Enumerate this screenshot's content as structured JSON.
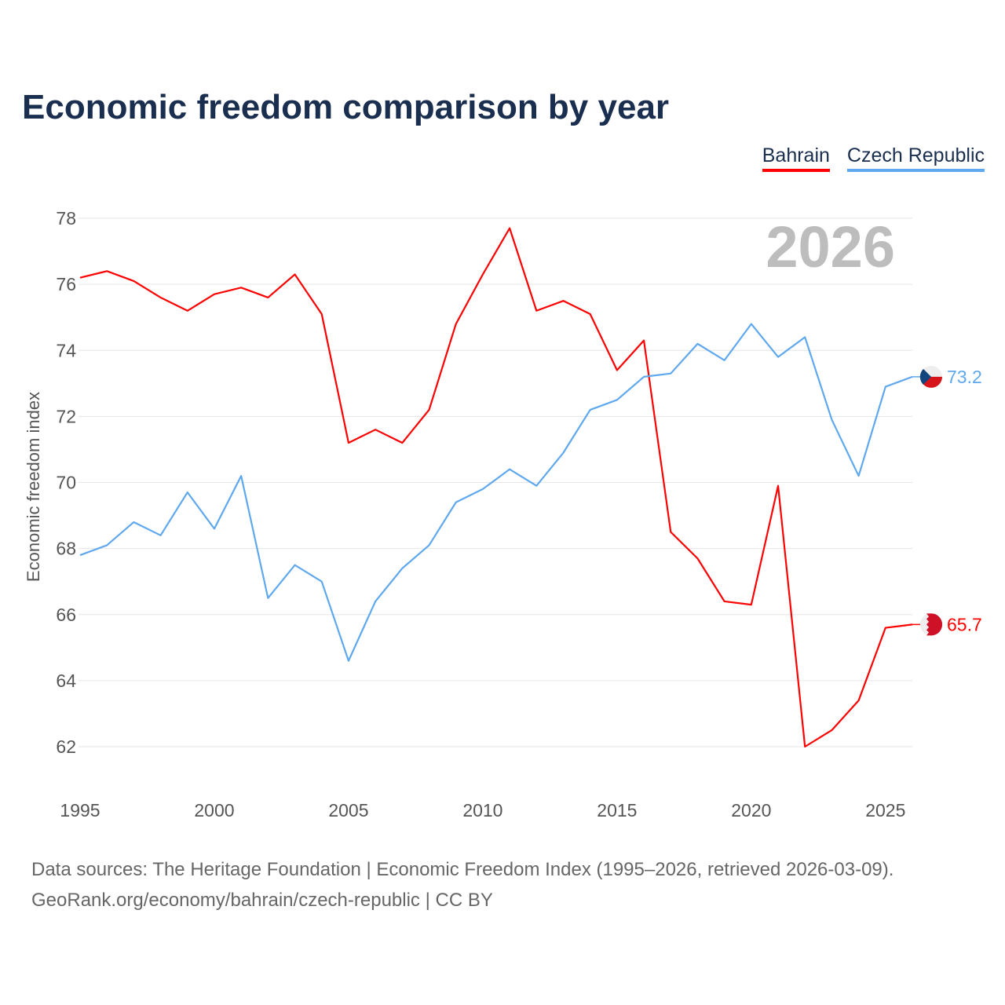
{
  "title": "Economic freedom comparison by year",
  "legend": [
    {
      "label": "Bahrain",
      "color": "#ff0000"
    },
    {
      "label": "Czech Republic",
      "color": "#5fa8ee"
    }
  ],
  "footer": {
    "line1": "Data sources: The Heritage Foundation | Economic Freedom Index (1995–2026, retrieved 2026-03-09).",
    "line2": "GeoRank.org/economy/bahrain/czech-republic | CC BY"
  },
  "chart_data": {
    "type": "line",
    "title": "Economic freedom comparison by year",
    "xlabel": "",
    "ylabel": "Economic freedom index",
    "year_label": "2026",
    "xlim": [
      1995,
      2026
    ],
    "ylim": [
      61,
      79
    ],
    "xticks": [
      1995,
      2000,
      2005,
      2010,
      2015,
      2020,
      2025
    ],
    "yticks": [
      62,
      64,
      66,
      68,
      70,
      72,
      74,
      76,
      78
    ],
    "x": [
      1995,
      1996,
      1997,
      1998,
      1999,
      2000,
      2001,
      2002,
      2003,
      2004,
      2005,
      2006,
      2007,
      2008,
      2009,
      2010,
      2011,
      2012,
      2013,
      2014,
      2015,
      2016,
      2017,
      2018,
      2019,
      2020,
      2021,
      2022,
      2023,
      2024,
      2025,
      2026
    ],
    "series": [
      {
        "name": "Bahrain",
        "color": "#ff0000",
        "end_label": "65.7",
        "flag": "bahrain-flag",
        "values": [
          76.2,
          76.4,
          76.1,
          75.6,
          75.2,
          75.7,
          75.9,
          75.6,
          76.3,
          75.1,
          71.2,
          71.6,
          71.2,
          72.2,
          74.8,
          76.3,
          77.7,
          75.2,
          75.5,
          75.1,
          73.4,
          74.3,
          68.5,
          67.7,
          66.4,
          66.3,
          69.9,
          62.0,
          62.5,
          63.4,
          65.6,
          65.7
        ]
      },
      {
        "name": "Czech Republic",
        "color": "#5fa8ee",
        "end_label": "73.2",
        "flag": "czech-flag",
        "values": [
          67.8,
          68.1,
          68.8,
          68.4,
          69.7,
          68.6,
          70.2,
          66.5,
          67.5,
          67.0,
          64.6,
          66.4,
          67.4,
          68.1,
          69.4,
          69.8,
          70.4,
          69.9,
          70.9,
          72.2,
          72.5,
          73.2,
          73.3,
          74.2,
          73.7,
          74.8,
          73.8,
          74.4,
          71.9,
          70.2,
          72.9,
          73.2
        ]
      }
    ]
  }
}
